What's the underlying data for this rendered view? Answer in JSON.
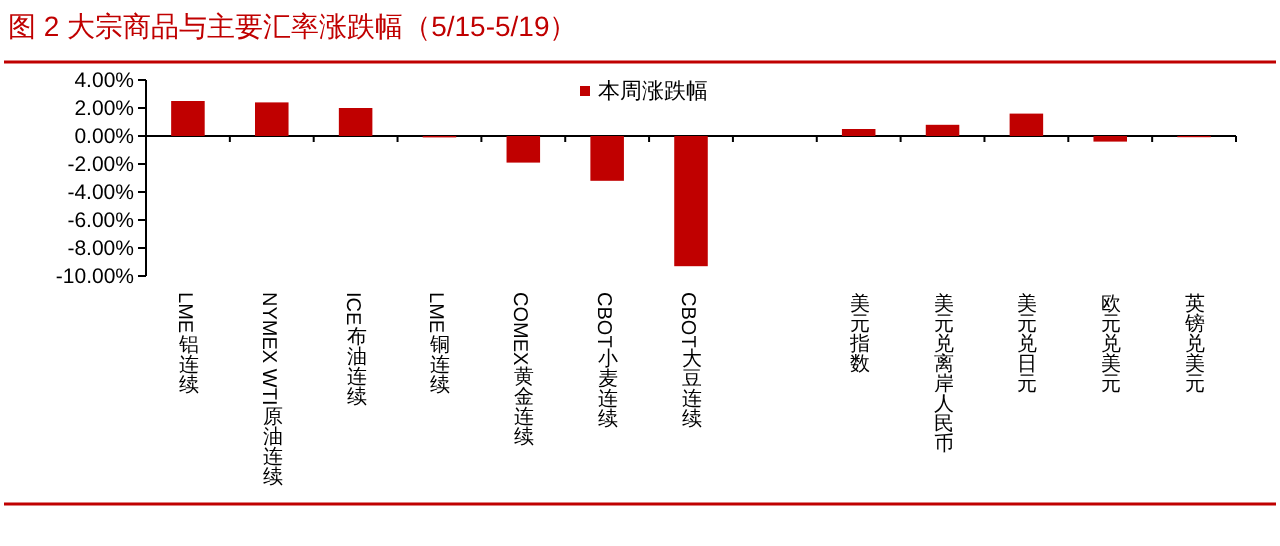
{
  "chart_data": {
    "type": "bar",
    "title": "图 2 大宗商品与主要汇率涨跌幅（5/15-5/19）",
    "categories": [
      "LME铝连续",
      "NYMEX WTI原油连续",
      "ICE布油连续",
      "LME铜连续",
      "COMEX黄金连续",
      "CBOT小麦连续",
      "CBOT大豆连续",
      null,
      "美元指数",
      "美元兑离岸人民币",
      "美元兑日元",
      "欧元兑美元",
      "英镑兑美元"
    ],
    "series": [
      {
        "name": "本周涨跌幅",
        "color": "#c00000",
        "values": [
          2.5,
          2.4,
          2.0,
          -0.1,
          -1.9,
          -3.2,
          -9.3,
          null,
          0.5,
          0.8,
          1.6,
          -0.4,
          0.0
        ]
      }
    ],
    "ylim": [
      -10,
      4
    ],
    "yticks": [
      {
        "value": 4,
        "label": "4.00%"
      },
      {
        "value": 2,
        "label": "2.00%"
      },
      {
        "value": 0,
        "label": "0.00%"
      },
      {
        "value": -2,
        "label": "-2.00%"
      },
      {
        "value": -4,
        "label": "-4.00%"
      },
      {
        "value": -6,
        "label": "-6.00%"
      },
      {
        "value": -8,
        "label": "-8.00%"
      },
      {
        "value": -10,
        "label": "-10.00%"
      }
    ],
    "legend": "top"
  }
}
